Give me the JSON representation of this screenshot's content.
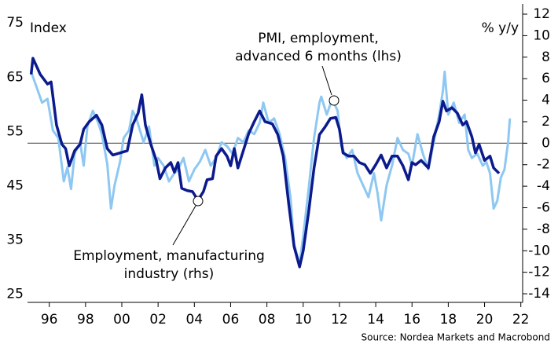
{
  "chart_data": {
    "type": "line",
    "left_axis_label": "Index",
    "right_axis_label": "% y/y",
    "source": "Source: Nordea Markets and Macrobond",
    "annotations": [
      "PMI, employment,",
      "advanced 6 months (lhs)",
      "Employment, manufacturing",
      "industry (rhs)"
    ],
    "xlim": [
      1994.8,
      2022.1
    ],
    "xticks": [
      {
        "value": 1996,
        "label": "96"
      },
      {
        "value": 1998,
        "label": "98"
      },
      {
        "value": 2000,
        "label": "00"
      },
      {
        "value": 2002,
        "label": "02"
      },
      {
        "value": 2004,
        "label": "04"
      },
      {
        "value": 2006,
        "label": "06"
      },
      {
        "value": 2008,
        "label": "08"
      },
      {
        "value": 2010,
        "label": "10"
      },
      {
        "value": 2012,
        "label": "12"
      },
      {
        "value": 2014,
        "label": "14"
      },
      {
        "value": 2016,
        "label": "16"
      },
      {
        "value": 2018,
        "label": "18"
      },
      {
        "value": 2020,
        "label": "20"
      },
      {
        "value": 2022,
        "label": "22"
      }
    ],
    "ylim": [
      23.5,
      78.5
    ],
    "yticks": [
      25,
      35,
      45,
      55,
      65,
      75
    ],
    "y2lim": [
      -14.8,
      12.95
    ],
    "y2ticks": [
      -14,
      -12,
      -10,
      -8,
      -6,
      -4,
      -2,
      0,
      2,
      4,
      6,
      8,
      10,
      12
    ],
    "reference_line": {
      "value": 0,
      "axis": "y2"
    },
    "series": [
      {
        "name": "PMI, employment, advanced 6 months (lhs)",
        "color": "#8ec8f2",
        "axis": "y",
        "x": [
          1995.0,
          1995.3,
          1995.6,
          1995.9,
          1996.2,
          1996.5,
          1996.8,
          1997.0,
          1997.2,
          1997.4,
          1997.7,
          1997.9,
          1998.1,
          1998.4,
          1998.7,
          1998.9,
          1999.2,
          1999.4,
          1999.6,
          1999.9,
          2000.1,
          2000.4,
          2000.6,
          2000.8,
          2001.0,
          2001.2,
          2001.5,
          2001.8,
          2002.0,
          2002.3,
          2002.6,
          2002.9,
          2003.1,
          2003.4,
          2003.7,
          2004.0,
          2004.3,
          2004.6,
          2004.9,
          2005.2,
          2005.5,
          2005.8,
          2006.1,
          2006.4,
          2006.7,
          2007.0,
          2007.3,
          2007.6,
          2007.8,
          2008.1,
          2008.4,
          2008.7,
          2009.0,
          2009.3,
          2009.5,
          2009.8,
          2010.0,
          2010.3,
          2010.6,
          2010.9,
          2011.0,
          2011.3,
          2011.6,
          2011.9,
          2012.1,
          2012.4,
          2012.7,
          2013.0,
          2013.3,
          2013.6,
          2013.9,
          2014.1,
          2014.3,
          2014.6,
          2014.9,
          2015.2,
          2015.5,
          2015.8,
          2016.0,
          2016.3,
          2016.6,
          2016.9,
          2017.2,
          2017.5,
          2017.7,
          2017.8,
          2018.0,
          2018.3,
          2018.6,
          2018.9,
          2019.1,
          2019.3,
          2019.6,
          2019.9,
          2020.1,
          2020.3,
          2020.5,
          2020.7,
          2020.9,
          2021.1,
          2021.3,
          2021.4
        ],
        "values": [
          66.0,
          63.2,
          60.3,
          61.0,
          55.2,
          53.8,
          45.8,
          48.4,
          44.4,
          50.9,
          53.0,
          48.7,
          55.9,
          58.8,
          56.6,
          54.5,
          49.0,
          40.8,
          45.1,
          49.4,
          53.8,
          55.2,
          58.8,
          57.4,
          55.2,
          53.0,
          55.9,
          48.7,
          50.1,
          48.7,
          45.8,
          47.3,
          48.0,
          50.1,
          45.8,
          48.0,
          49.4,
          51.6,
          48.7,
          50.1,
          53.0,
          52.3,
          50.9,
          53.8,
          53.0,
          55.2,
          54.5,
          56.6,
          60.3,
          56.6,
          57.4,
          54.5,
          50.1,
          42.9,
          34.2,
          30.6,
          35.7,
          44.4,
          53.8,
          60.3,
          61.4,
          58.1,
          61.0,
          58.8,
          52.3,
          50.1,
          51.6,
          47.3,
          45.1,
          42.9,
          47.3,
          43.6,
          38.6,
          45.1,
          48.7,
          53.8,
          51.6,
          50.9,
          48.7,
          54.5,
          50.9,
          48.0,
          53.0,
          58.1,
          62.4,
          66.0,
          58.1,
          60.3,
          56.6,
          58.1,
          51.6,
          50.1,
          50.9,
          48.7,
          49.4,
          47.3,
          40.8,
          42.2,
          46.5,
          48.0,
          53.0,
          57.4
        ]
      },
      {
        "name": "Employment, manufacturing industry (rhs)",
        "color": "#0b1a8c",
        "axis": "y2",
        "x": [
          1995.0,
          1995.1,
          1995.5,
          1995.9,
          1996.1,
          1996.4,
          1996.7,
          1996.9,
          1997.1,
          1997.4,
          1997.7,
          1997.9,
          1998.2,
          1998.6,
          1998.9,
          1999.2,
          1999.5,
          1999.9,
          2000.3,
          2000.6,
          2000.9,
          2001.1,
          2001.3,
          2001.6,
          2001.9,
          2002.1,
          2002.4,
          2002.7,
          2002.9,
          2003.1,
          2003.3,
          2003.6,
          2003.9,
          2004.2,
          2004.5,
          2004.7,
          2005.0,
          2005.2,
          2005.5,
          2005.8,
          2006.0,
          2006.2,
          2006.4,
          2006.7,
          2007.0,
          2007.3,
          2007.6,
          2007.9,
          2008.3,
          2008.6,
          2008.9,
          2009.2,
          2009.5,
          2009.8,
          2010.0,
          2010.3,
          2010.6,
          2010.9,
          2011.2,
          2011.5,
          2011.8,
          2012.0,
          2012.2,
          2012.5,
          2012.8,
          2013.1,
          2013.4,
          2013.7,
          2014.0,
          2014.3,
          2014.6,
          2014.9,
          2015.2,
          2015.5,
          2015.8,
          2016.0,
          2016.2,
          2016.5,
          2016.9,
          2017.2,
          2017.5,
          2017.7,
          2017.9,
          2018.2,
          2018.5,
          2018.8,
          2019.0,
          2019.3,
          2019.5,
          2019.7,
          2020.0,
          2020.3,
          2020.5,
          2020.8
        ],
        "values": [
          6.4,
          7.9,
          6.4,
          5.5,
          5.7,
          1.7,
          -0.1,
          -0.5,
          -2.1,
          -0.7,
          -0.1,
          1.3,
          2.0,
          2.6,
          1.7,
          -0.5,
          -1.1,
          -0.9,
          -0.7,
          1.7,
          2.8,
          4.5,
          1.7,
          -0.1,
          -1.6,
          -3.3,
          -2.3,
          -1.8,
          -2.7,
          -1.8,
          -4.2,
          -4.4,
          -4.5,
          -5.3,
          -4.5,
          -3.4,
          -3.3,
          -1.2,
          -0.5,
          -1.2,
          -2.1,
          -0.5,
          -2.3,
          -0.7,
          0.9,
          2.0,
          3.0,
          2.0,
          1.8,
          0.8,
          -1.2,
          -5.6,
          -9.6,
          -11.5,
          -10.0,
          -6.4,
          -2.3,
          0.8,
          1.5,
          2.3,
          2.4,
          1.3,
          -0.9,
          -1.2,
          -1.2,
          -1.8,
          -2.0,
          -2.8,
          -2.0,
          -1.1,
          -2.3,
          -1.2,
          -1.2,
          -2.1,
          -3.4,
          -1.8,
          -2.0,
          -1.6,
          -2.3,
          0.6,
          2.0,
          3.9,
          3.0,
          3.3,
          2.8,
          1.7,
          2.0,
          0.6,
          -0.9,
          -0.1,
          -1.6,
          -1.2,
          -2.3,
          -2.8
        ]
      }
    ]
  }
}
